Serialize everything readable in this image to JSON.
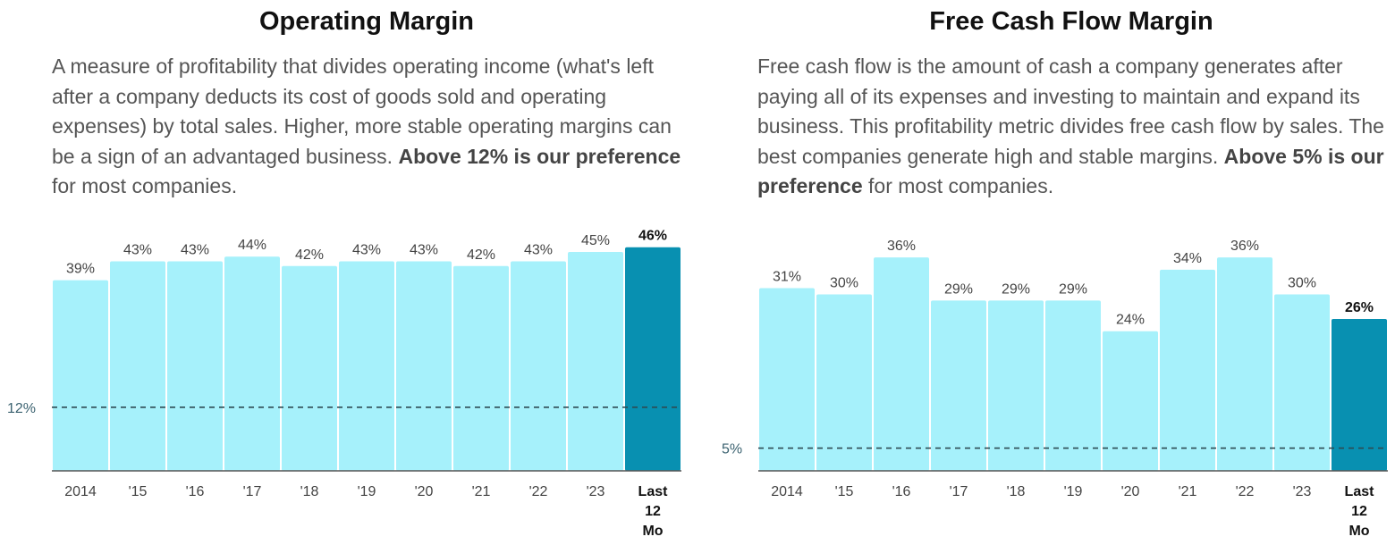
{
  "charts": [
    {
      "title": "Operating Margin",
      "description_text": "A measure of profitability that divides operating income (what's left after a company deducts its cost of goods sold and operating expenses) by total sales. Higher, more stable operating margins can be a sign of an advantaged business.",
      "preference_bold": "Above 12% is our preference",
      "preference_tail": " for most companies."
    },
    {
      "title": "Free Cash Flow Margin",
      "description_text": "Free cash flow is the amount of cash a company generates after paying all of its expenses and investing to maintain and expand its business. This profitability metric divides free cash flow by sales. The best companies generate high and stable margins.",
      "preference_bold": "Above 5% is our preference",
      "preference_tail": " for most companies."
    }
  ],
  "colors": {
    "bar": "#a6f1fb",
    "bar_highlight": "#0890b1",
    "reference_line": "#2d4a52",
    "axis": "#555555"
  },
  "chart_data": [
    {
      "type": "bar",
      "title": "Operating Margin",
      "categories": [
        "2014",
        "'15",
        "'16",
        "'17",
        "'18",
        "'19",
        "'20",
        "'21",
        "'22",
        "'23",
        "Last 12 Mo"
      ],
      "values": [
        39,
        43,
        43,
        44,
        42,
        43,
        43,
        42,
        43,
        45,
        46
      ],
      "value_labels": [
        "39%",
        "43%",
        "43%",
        "44%",
        "42%",
        "43%",
        "43%",
        "42%",
        "43%",
        "45%",
        "46%"
      ],
      "highlight_index": 10,
      "reference_line": {
        "value": 12,
        "label": "12%"
      },
      "ylim": [
        -1.5,
        46.7
      ],
      "grid": false
    },
    {
      "type": "bar",
      "title": "Free Cash Flow Margin",
      "categories": [
        "2014",
        "'15",
        "'16",
        "'17",
        "'18",
        "'19",
        "'20",
        "'21",
        "'22",
        "'23",
        "Last 12 Mo"
      ],
      "values": [
        31,
        30,
        36,
        29,
        29,
        29,
        24,
        34,
        36,
        30,
        26
      ],
      "value_labels": [
        "31%",
        "30%",
        "36%",
        "29%",
        "29%",
        "29%",
        "24%",
        "34%",
        "36%",
        "30%",
        "26%"
      ],
      "highlight_index": 10,
      "reference_line": {
        "value": 5,
        "label": "5%"
      },
      "ylim": [
        1.3,
        38.2
      ],
      "grid": false
    }
  ]
}
